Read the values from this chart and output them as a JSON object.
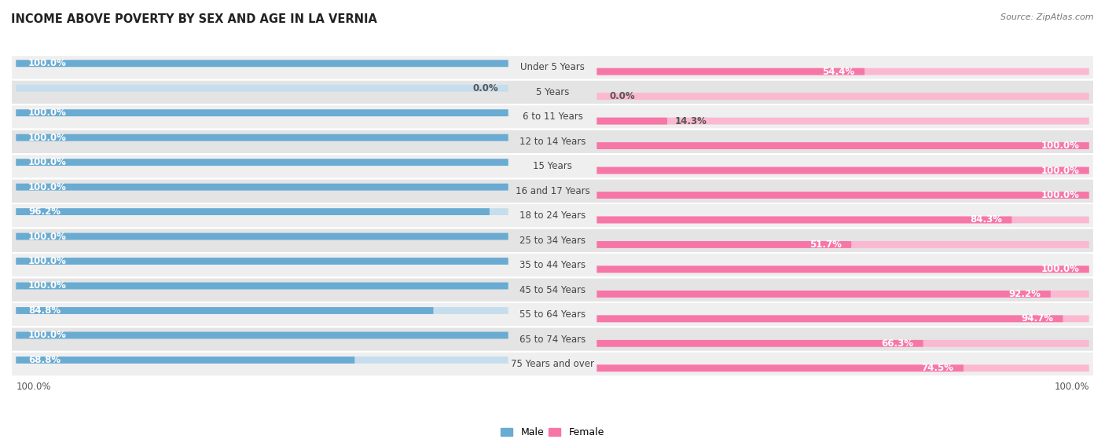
{
  "title": "INCOME ABOVE POVERTY BY SEX AND AGE IN LA VERNIA",
  "source": "Source: ZipAtlas.com",
  "categories": [
    "Under 5 Years",
    "5 Years",
    "6 to 11 Years",
    "12 to 14 Years",
    "15 Years",
    "16 and 17 Years",
    "18 to 24 Years",
    "25 to 34 Years",
    "35 to 44 Years",
    "45 to 54 Years",
    "55 to 64 Years",
    "65 to 74 Years",
    "75 Years and over"
  ],
  "male": [
    100.0,
    0.0,
    100.0,
    100.0,
    100.0,
    100.0,
    96.2,
    100.0,
    100.0,
    100.0,
    84.8,
    100.0,
    68.8
  ],
  "female": [
    54.4,
    0.0,
    14.3,
    100.0,
    100.0,
    100.0,
    84.3,
    51.7,
    100.0,
    92.2,
    94.7,
    66.3,
    74.5
  ],
  "male_color": "#6aabd2",
  "female_color": "#f776a8",
  "male_color_light": "#c5dded",
  "female_color_light": "#fbb8d0",
  "row_bg_even": "#efefef",
  "row_bg_odd": "#e4e4e4",
  "label_fontsize": 8.5,
  "title_fontsize": 10.5,
  "legend_fontsize": 9,
  "source_fontsize": 8
}
